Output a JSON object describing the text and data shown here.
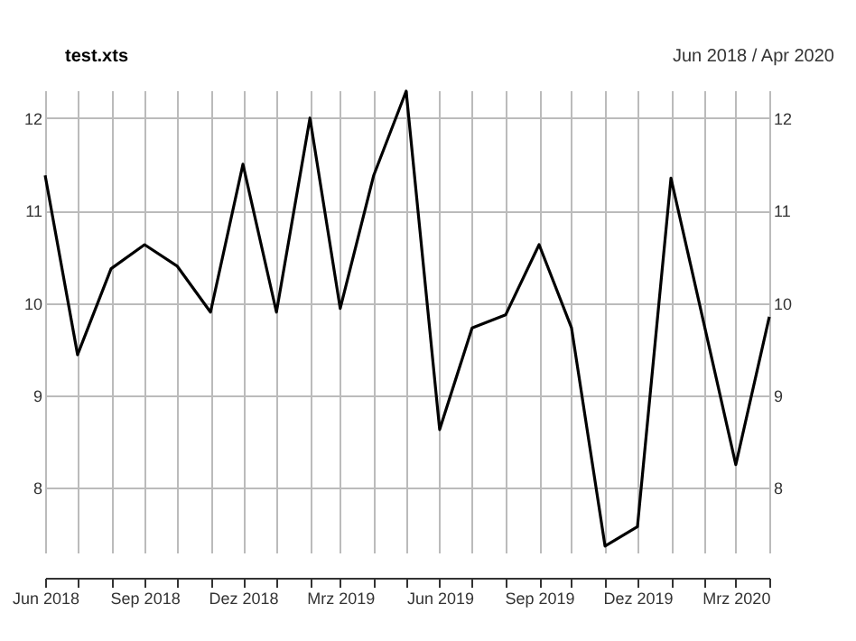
{
  "chart_data": {
    "type": "line",
    "title": "test.xts",
    "subtitle": "Jun 2018 / Apr 2020",
    "x": [
      "2018-06",
      "2018-07",
      "2018-08",
      "2018-09",
      "2018-10",
      "2018-11",
      "2018-12",
      "2019-01",
      "2019-02",
      "2019-03",
      "2019-04",
      "2019-05",
      "2019-06",
      "2019-07",
      "2019-08",
      "2019-09",
      "2019-10",
      "2019-11",
      "2019-12",
      "2020-01",
      "2020-02",
      "2020-03",
      "2020-04"
    ],
    "series": [
      {
        "color": "#000000",
        "values": [
          11.38,
          9.44,
          10.37,
          10.63,
          10.4,
          9.9,
          11.5,
          9.9,
          12.0,
          9.94,
          11.38,
          12.29,
          8.63,
          9.73,
          9.87,
          10.63,
          9.73,
          7.37,
          7.58,
          11.35,
          9.75,
          8.25,
          9.85
        ]
      }
    ],
    "xlim": [
      "2018-06",
      "2020-04"
    ],
    "xticks": [
      {
        "value": "2018-06",
        "label": "Jun 2018"
      },
      {
        "value": "2018-07",
        "label": null
      },
      {
        "value": "2018-08",
        "label": null
      },
      {
        "value": "2018-09",
        "label": "Sep 2018"
      },
      {
        "value": "2018-10",
        "label": null
      },
      {
        "value": "2018-11",
        "label": null
      },
      {
        "value": "2018-12",
        "label": "Dez 2018"
      },
      {
        "value": "2019-01",
        "label": null
      },
      {
        "value": "2019-02",
        "label": null
      },
      {
        "value": "2019-03",
        "label": "Mrz 2019"
      },
      {
        "value": "2019-04",
        "label": null
      },
      {
        "value": "2019-05",
        "label": null
      },
      {
        "value": "2019-06",
        "label": "Jun 2019"
      },
      {
        "value": "2019-07",
        "label": null
      },
      {
        "value": "2019-08",
        "label": null
      },
      {
        "value": "2019-09",
        "label": "Sep 2019"
      },
      {
        "value": "2019-10",
        "label": null
      },
      {
        "value": "2019-11",
        "label": null
      },
      {
        "value": "2019-12",
        "label": "Dez 2019"
      },
      {
        "value": "2020-01",
        "label": null
      },
      {
        "value": "2020-02",
        "label": null
      },
      {
        "value": "2020-03",
        "label": "Mrz 2020"
      },
      {
        "value": "2020-04",
        "label": null
      }
    ],
    "ylim": [
      7.3,
      12.3
    ],
    "yticks": [
      8,
      9,
      10,
      11,
      12
    ],
    "y2lim": [
      7.3,
      12.3
    ],
    "y2ticks": [
      8,
      9,
      10,
      11,
      12
    ],
    "grid": true,
    "marker": "none",
    "line_style": "solid"
  }
}
